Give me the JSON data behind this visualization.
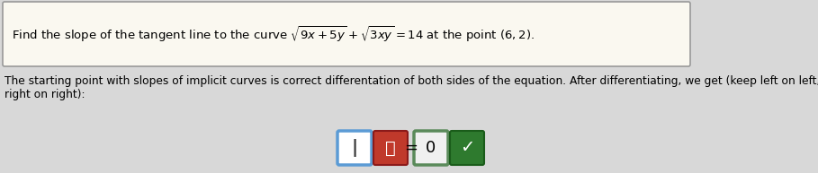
{
  "bg_color": "#d8d8d8",
  "box_bg": "#faf8f0",
  "box_edge": "#999999",
  "title_text": "Find the slope of the tangent line to the curve $\\sqrt{9x+5y}+\\sqrt{3xy}=14$ at the point $(6,2)$.",
  "body_line1": "The starting point with slopes of implicit curves is correct differentation of both sides of the equation. After differentiating, we get (keep left on left,",
  "body_line2": "right on right):",
  "title_fontsize": 9.5,
  "body_fontsize": 8.8,
  "box1_border": "#5b9bd5",
  "box1_bg": "#ffffff",
  "box1_text": "|",
  "box2_bg": "#c0392b",
  "box2_border": "#8b1a1a",
  "box2_text": "ⓞ",
  "box3_bg": "#f0f0f0",
  "box3_border": "#5a8a5a",
  "box3_text": "0",
  "box4_bg": "#2e7a2e",
  "box4_border": "#1a5c1a",
  "box4_text": "✓",
  "equals_text": "=",
  "circle_num": "①"
}
